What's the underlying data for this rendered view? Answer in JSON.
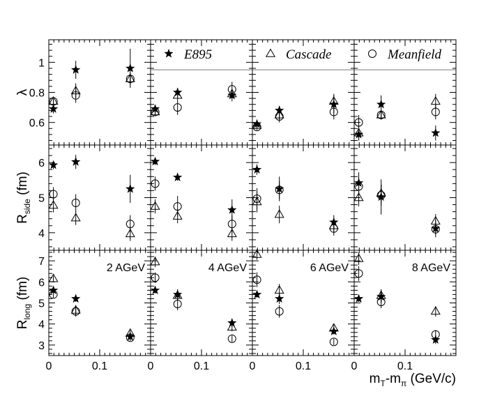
{
  "chart_data": {
    "type": "scatter",
    "x_axis": {
      "label": "m",
      "label_sub_1": "T",
      "label_mid": "-m",
      "label_sub_2": "π",
      "label_tail": " (GeV/c)",
      "xlim": [
        0,
        0.2
      ],
      "ticks": [
        {
          "v": 0,
          "label": "0"
        },
        {
          "v": 0.1,
          "label": "0.1"
        }
      ]
    },
    "rows": [
      {
        "id": "lambda",
        "label_main": "λ",
        "label_sub": "",
        "label_tail": "",
        "ylim": [
          0.45,
          1.15
        ],
        "ticks": [
          {
            "v": 0.6,
            "label": "0.6"
          },
          {
            "v": 0.8,
            "label": "0.8"
          },
          {
            "v": 1.0,
            "label": "1"
          }
        ],
        "ref_line": 0.95
      },
      {
        "id": "rside",
        "label_main": "R",
        "label_sub": "side",
        "label_tail": " (fm)",
        "ylim": [
          3.5,
          6.5
        ],
        "ticks": [
          {
            "v": 4,
            "label": "4"
          },
          {
            "v": 5,
            "label": "5"
          },
          {
            "v": 6,
            "label": "6"
          }
        ],
        "ref_line": null
      },
      {
        "id": "rlong",
        "label_main": "R",
        "label_sub": "long",
        "label_tail": " (fm)",
        "ylim": [
          2.5,
          7.5
        ],
        "ticks": [
          {
            "v": 3,
            "label": "3"
          },
          {
            "v": 4,
            "label": "4"
          },
          {
            "v": 5,
            "label": "5"
          },
          {
            "v": 6,
            "label": "6"
          },
          {
            "v": 7,
            "label": "7"
          }
        ],
        "ref_line": null
      }
    ],
    "columns": [
      {
        "energy": "2 AGeV",
        "legend_text": ""
      },
      {
        "energy": "4 AGeV",
        "legend_text": "E895"
      },
      {
        "energy": "6 AGeV",
        "legend_text": "Cascade"
      },
      {
        "energy": "8 AGeV",
        "legend_text": "Meanfield"
      }
    ],
    "series": [
      {
        "name": "E895",
        "marker": "star",
        "legend_column": 1
      },
      {
        "name": "Cascade",
        "marker": "triangle",
        "legend_column": 2
      },
      {
        "name": "Meanfield",
        "marker": "circle",
        "legend_column": 3
      }
    ],
    "x_values": [
      0.009,
      0.053,
      0.16
    ],
    "panels": [
      [
        {
          "E895": {
            "y": [
              0.69,
              0.95,
              0.96
            ],
            "err": [
              0.03,
              0.06,
              0.13
            ]
          },
          "Cascade": {
            "y": [
              0.74,
              0.81,
              0.89
            ],
            "err": [
              0.02,
              0.05,
              0.03
            ]
          },
          "Meanfield": {
            "y": [
              0.74,
              0.78,
              0.89
            ],
            "err": [
              0.02,
              0.05,
              0.04
            ]
          }
        },
        {
          "E895": {
            "y": [
              0.69,
              0.8,
              0.78
            ],
            "err": [
              0.02,
              0.03,
              0.04
            ]
          },
          "Cascade": {
            "y": [
              0.67,
              0.78,
              0.79
            ],
            "err": [
              0.02,
              0.03,
              0.03
            ]
          },
          "Meanfield": {
            "y": [
              0.67,
              0.7,
              0.82
            ],
            "err": [
              0.02,
              0.05,
              0.05
            ]
          }
        },
        {
          "E895": {
            "y": [
              0.59,
              0.68,
              0.72
            ],
            "err": [
              0.02,
              0.03,
              0.06
            ]
          },
          "Cascade": {
            "y": [
              0.58,
              0.65,
              0.74
            ],
            "err": [
              0.02,
              0.03,
              0.05
            ]
          },
          "Meanfield": {
            "y": [
              0.57,
              0.64,
              0.67
            ],
            "err": [
              0.02,
              0.04,
              0.05
            ]
          }
        },
        {
          "E895": {
            "y": [
              0.52,
              0.72,
              0.53
            ],
            "err": [
              0.04,
              0.06,
              0.05
            ]
          },
          "Cascade": {
            "y": [
              0.53,
              0.65,
              0.74
            ],
            "err": [
              0.05,
              0.03,
              0.05
            ]
          },
          "Meanfield": {
            "y": [
              0.6,
              0.65,
              0.67
            ],
            "err": [
              0.05,
              0.03,
              0.05
            ]
          }
        }
      ],
      [
        {
          "E895": {
            "y": [
              5.93,
              6.02,
              5.25
            ],
            "err": [
              0.12,
              0.2,
              0.4
            ]
          },
          "Cascade": {
            "y": [
              4.78,
              4.42,
              3.97
            ],
            "err": [
              0.2,
              0.2,
              0.2
            ]
          },
          "Meanfield": {
            "y": [
              5.1,
              4.85,
              4.25
            ],
            "err": [
              0.2,
              0.25,
              0.25
            ]
          }
        },
        {
          "E895": {
            "y": [
              6.03,
              5.58,
              4.65
            ],
            "err": [
              0.1,
              0.1,
              0.3
            ]
          },
          "Cascade": {
            "y": [
              4.75,
              4.47,
              3.97
            ],
            "err": [
              0.2,
              0.2,
              0.2
            ]
          },
          "Meanfield": {
            "y": [
              5.4,
              4.75,
              4.25
            ],
            "err": [
              0.2,
              0.3,
              0.25
            ]
          }
        },
        {
          "E895": {
            "y": [
              5.8,
              5.25,
              4.3
            ],
            "err": [
              0.15,
              0.35,
              0.2
            ]
          },
          "Cascade": {
            "y": [
              4.88,
              4.52,
              4.2
            ],
            "err": [
              0.3,
              0.25,
              0.2
            ]
          },
          "Meanfield": {
            "y": [
              4.97,
              5.22,
              4.12
            ],
            "err": [
              0.3,
              0.25,
              0.2
            ]
          }
        },
        {
          "E895": {
            "y": [
              5.42,
              5.02,
              4.12
            ],
            "err": [
              0.3,
              0.5,
              0.25
            ]
          },
          "Cascade": {
            "y": [
              5.0,
              5.12,
              4.33
            ],
            "err": [
              0.25,
              0.25,
              0.2
            ]
          },
          "Meanfield": {
            "y": [
              5.32,
              5.07,
              4.1
            ],
            "err": [
              0.25,
              0.3,
              0.15
            ]
          }
        }
      ],
      [
        {
          "E895": {
            "y": [
              5.6,
              5.2,
              3.4
            ],
            "err": [
              0.15,
              0.15,
              0.15
            ]
          },
          "Cascade": {
            "y": [
              6.15,
              4.65,
              3.55
            ],
            "err": [
              0.15,
              0.25,
              0.15
            ]
          },
          "Meanfield": {
            "y": [
              5.4,
              4.6,
              3.35
            ],
            "err": [
              0.15,
              0.25,
              0.15
            ]
          }
        },
        {
          "E895": {
            "y": [
              5.6,
              5.4,
              4.05
            ],
            "err": [
              0.15,
              0.25,
              0.2
            ]
          },
          "Cascade": {
            "y": [
              6.95,
              5.35,
              3.85
            ],
            "err": [
              0.25,
              0.2,
              0.2
            ]
          },
          "Meanfield": {
            "y": [
              6.2,
              4.95,
              3.3
            ],
            "err": [
              0.25,
              0.3,
              0.15
            ]
          }
        },
        {
          "E895": {
            "y": [
              5.4,
              5.2,
              3.65
            ],
            "err": [
              0.15,
              0.25,
              0.15
            ]
          },
          "Cascade": {
            "y": [
              7.3,
              5.6,
              3.8
            ],
            "err": [
              0.25,
              0.3,
              0.2
            ]
          },
          "Meanfield": {
            "y": [
              6.1,
              4.6,
              3.15
            ],
            "err": [
              0.35,
              0.3,
              0.15
            ]
          }
        },
        {
          "E895": {
            "y": [
              5.2,
              5.3,
              3.25
            ],
            "err": [
              0.15,
              0.3,
              0.2
            ]
          },
          "Cascade": {
            "y": [
              7.1,
              5.35,
              4.6
            ],
            "err": [
              0.3,
              0.3,
              0.25
            ]
          },
          "Meanfield": {
            "y": [
              6.4,
              5.05,
              3.5
            ],
            "err": [
              0.35,
              0.3,
              0.2
            ]
          }
        }
      ]
    ]
  }
}
